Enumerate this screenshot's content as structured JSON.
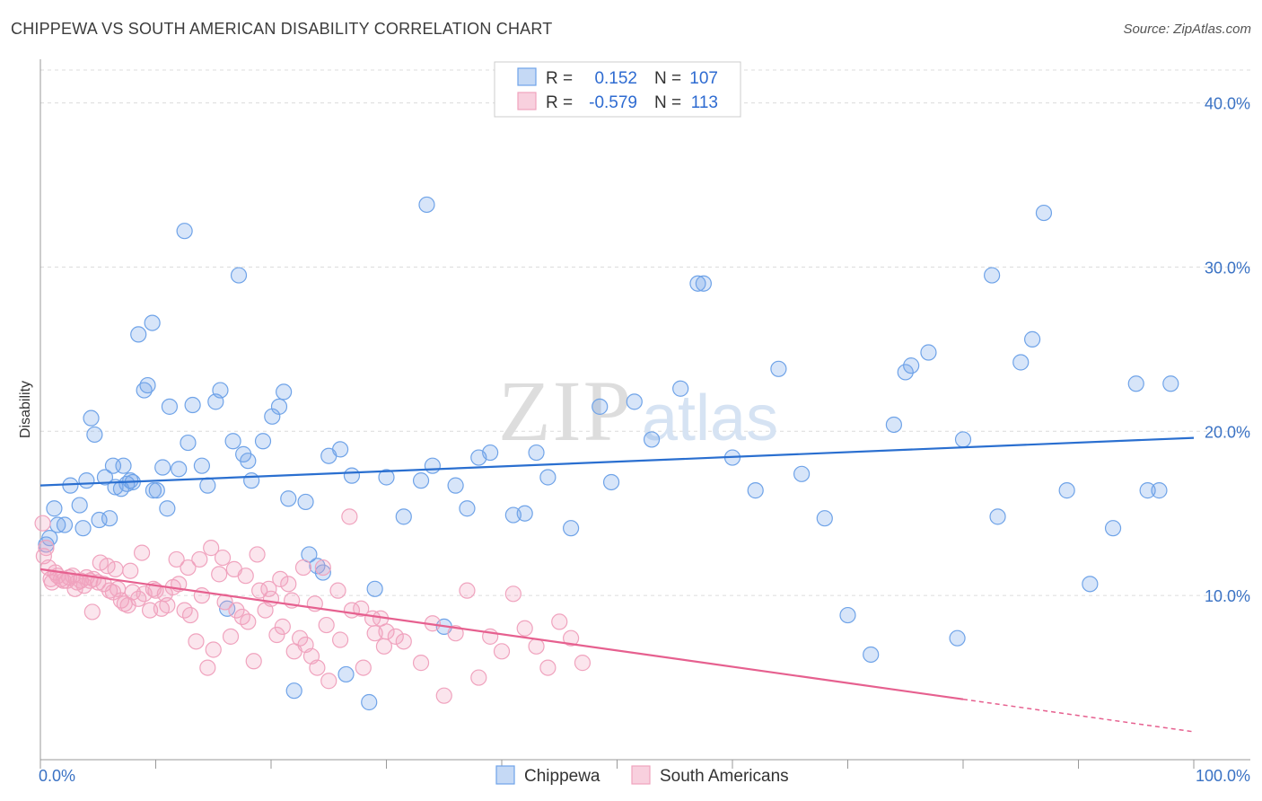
{
  "title": "CHIPPEWA VS SOUTH AMERICAN DISABILITY CORRELATION CHART",
  "source": "Source: ZipAtlas.com",
  "watermark": {
    "zip": "ZIP",
    "atlas": "atlas"
  },
  "legend_box": {
    "rows": [
      {
        "r_label": "R =",
        "r_value": "0.152",
        "n_label": "N =",
        "n_value": "107",
        "color": "#6fa3e8"
      },
      {
        "r_label": "R =",
        "r_value": "-0.579",
        "n_label": "N =",
        "n_value": "113",
        "color": "#f0a3be"
      }
    ]
  },
  "bottom_legend": [
    {
      "label": "Chippewa",
      "color": "#6fa3e8"
    },
    {
      "label": "South Americans",
      "color": "#f0a3be"
    }
  ],
  "chart_data": {
    "type": "scatter",
    "title": "CHIPPEWA VS SOUTH AMERICAN DISABILITY CORRELATION CHART",
    "xlabel": "",
    "ylabel": "Disability",
    "xlim": [
      0,
      100
    ],
    "ylim": [
      0,
      42
    ],
    "x_tick_labels": [
      "0.0%",
      "100.0%"
    ],
    "y_ticks": [
      10,
      20,
      30,
      40
    ],
    "y_tick_labels": [
      "10.0%",
      "20.0%",
      "30.0%",
      "40.0%"
    ],
    "grid": true,
    "legend_position": "top-center",
    "series": [
      {
        "name": "Chippewa",
        "color": "#6fa3e8",
        "line_color": "#2a6fd0",
        "trend": {
          "x": [
            0,
            100
          ],
          "y": [
            16.7,
            19.6
          ],
          "dashed_from": null
        },
        "points": [
          [
            0.5,
            13.1
          ],
          [
            0.8,
            13.5
          ],
          [
            1.2,
            15.3
          ],
          [
            1.5,
            14.3
          ],
          [
            2.1,
            14.3
          ],
          [
            2.6,
            16.7
          ],
          [
            3.4,
            15.5
          ],
          [
            3.7,
            14.1
          ],
          [
            4.0,
            17.0
          ],
          [
            4.4,
            20.8
          ],
          [
            4.7,
            19.8
          ],
          [
            5.1,
            14.6
          ],
          [
            5.6,
            17.2
          ],
          [
            6.0,
            14.7
          ],
          [
            6.3,
            17.9
          ],
          [
            6.5,
            16.6
          ],
          [
            7.0,
            16.5
          ],
          [
            7.2,
            17.9
          ],
          [
            7.5,
            16.8
          ],
          [
            7.8,
            17.0
          ],
          [
            8.0,
            16.9
          ],
          [
            8.5,
            25.9
          ],
          [
            9.0,
            22.5
          ],
          [
            9.3,
            22.8
          ],
          [
            9.7,
            26.6
          ],
          [
            9.8,
            16.4
          ],
          [
            10.1,
            16.4
          ],
          [
            10.6,
            17.8
          ],
          [
            11.0,
            15.3
          ],
          [
            11.2,
            21.5
          ],
          [
            12.0,
            17.7
          ],
          [
            12.5,
            32.2
          ],
          [
            12.8,
            19.3
          ],
          [
            13.2,
            21.6
          ],
          [
            14.0,
            17.9
          ],
          [
            14.5,
            16.7
          ],
          [
            15.2,
            21.8
          ],
          [
            15.6,
            22.5
          ],
          [
            16.2,
            9.2
          ],
          [
            16.7,
            19.4
          ],
          [
            17.2,
            29.5
          ],
          [
            17.6,
            18.6
          ],
          [
            18.0,
            18.2
          ],
          [
            18.3,
            17.0
          ],
          [
            19.3,
            19.4
          ],
          [
            20.1,
            20.9
          ],
          [
            20.7,
            21.5
          ],
          [
            21.1,
            22.4
          ],
          [
            21.5,
            15.9
          ],
          [
            22.0,
            4.2
          ],
          [
            23.0,
            15.7
          ],
          [
            23.3,
            12.5
          ],
          [
            24.0,
            11.8
          ],
          [
            24.5,
            11.4
          ],
          [
            25.0,
            18.5
          ],
          [
            26.0,
            18.9
          ],
          [
            26.5,
            5.2
          ],
          [
            27.0,
            17.3
          ],
          [
            28.5,
            3.5
          ],
          [
            29.0,
            10.4
          ],
          [
            30.0,
            17.2
          ],
          [
            31.5,
            14.8
          ],
          [
            33.0,
            17.0
          ],
          [
            33.5,
            33.8
          ],
          [
            34.0,
            17.9
          ],
          [
            35.0,
            8.1
          ],
          [
            36.0,
            16.7
          ],
          [
            37.0,
            15.3
          ],
          [
            38.0,
            18.4
          ],
          [
            39.0,
            18.7
          ],
          [
            41.0,
            14.9
          ],
          [
            42.0,
            15.0
          ],
          [
            43.0,
            18.7
          ],
          [
            44.0,
            17.2
          ],
          [
            46.0,
            14.1
          ],
          [
            48.5,
            21.5
          ],
          [
            49.5,
            16.9
          ],
          [
            51.5,
            21.8
          ],
          [
            53.0,
            19.5
          ],
          [
            55.5,
            22.6
          ],
          [
            57.0,
            29.0
          ],
          [
            57.5,
            29.0
          ],
          [
            60.0,
            18.4
          ],
          [
            62.0,
            16.4
          ],
          [
            64.0,
            23.8
          ],
          [
            66.0,
            17.4
          ],
          [
            68.0,
            14.7
          ],
          [
            70.0,
            8.8
          ],
          [
            72.0,
            6.4
          ],
          [
            74.0,
            20.4
          ],
          [
            75.0,
            23.6
          ],
          [
            75.5,
            24.0
          ],
          [
            77.0,
            24.8
          ],
          [
            79.5,
            7.4
          ],
          [
            80.0,
            19.5
          ],
          [
            82.5,
            29.5
          ],
          [
            83.0,
            14.8
          ],
          [
            85.0,
            24.2
          ],
          [
            86.0,
            25.6
          ],
          [
            87.0,
            33.3
          ],
          [
            89.0,
            16.4
          ],
          [
            91.0,
            10.7
          ],
          [
            93.0,
            14.1
          ],
          [
            95.0,
            22.9
          ],
          [
            96.0,
            16.4
          ],
          [
            97.0,
            16.4
          ],
          [
            98.0,
            22.9
          ]
        ]
      },
      {
        "name": "South Americans",
        "color": "#f0a3be",
        "line_color": "#e6608f",
        "trend": {
          "x": [
            0,
            100
          ],
          "y": [
            11.6,
            1.7
          ],
          "dashed_from": 80
        },
        "points": [
          [
            0.2,
            14.4
          ],
          [
            0.3,
            12.4
          ],
          [
            0.5,
            12.9
          ],
          [
            0.7,
            11.7
          ],
          [
            0.9,
            11.0
          ],
          [
            1.0,
            10.8
          ],
          [
            1.3,
            11.4
          ],
          [
            1.5,
            11.2
          ],
          [
            1.8,
            11.0
          ],
          [
            2.0,
            10.9
          ],
          [
            2.3,
            10.9
          ],
          [
            2.5,
            11.1
          ],
          [
            2.8,
            11.2
          ],
          [
            3.0,
            10.4
          ],
          [
            3.2,
            10.8
          ],
          [
            3.5,
            10.9
          ],
          [
            3.8,
            10.6
          ],
          [
            4.0,
            11.1
          ],
          [
            4.3,
            10.9
          ],
          [
            4.6,
            11.0
          ],
          [
            5.0,
            10.8
          ],
          [
            5.5,
            10.7
          ],
          [
            5.8,
            11.8
          ],
          [
            6.0,
            10.3
          ],
          [
            6.3,
            10.2
          ],
          [
            6.7,
            10.4
          ],
          [
            7.0,
            9.7
          ],
          [
            7.3,
            9.5
          ],
          [
            7.6,
            9.4
          ],
          [
            8.0,
            10.2
          ],
          [
            8.5,
            9.8
          ],
          [
            9.0,
            10.1
          ],
          [
            9.5,
            9.1
          ],
          [
            10.0,
            10.3
          ],
          [
            10.5,
            9.2
          ],
          [
            11.0,
            9.4
          ],
          [
            11.5,
            10.5
          ],
          [
            12.0,
            10.7
          ],
          [
            12.5,
            9.1
          ],
          [
            13.0,
            8.8
          ],
          [
            13.5,
            7.2
          ],
          [
            14.0,
            10.0
          ],
          [
            14.5,
            5.6
          ],
          [
            15.0,
            6.7
          ],
          [
            15.5,
            11.3
          ],
          [
            16.0,
            9.6
          ],
          [
            16.5,
            7.5
          ],
          [
            17.0,
            9.1
          ],
          [
            17.5,
            8.7
          ],
          [
            18.0,
            8.4
          ],
          [
            18.5,
            6.0
          ],
          [
            19.0,
            10.3
          ],
          [
            19.5,
            9.1
          ],
          [
            20.0,
            9.8
          ],
          [
            20.5,
            7.6
          ],
          [
            21.0,
            8.1
          ],
          [
            21.5,
            10.7
          ],
          [
            22.0,
            6.6
          ],
          [
            22.5,
            7.4
          ],
          [
            23.0,
            7.0
          ],
          [
            23.5,
            6.3
          ],
          [
            24.0,
            5.6
          ],
          [
            24.5,
            11.7
          ],
          [
            25.0,
            4.8
          ],
          [
            26.0,
            7.3
          ],
          [
            27.0,
            9.1
          ],
          [
            28.0,
            5.6
          ],
          [
            29.0,
            7.7
          ],
          [
            29.5,
            8.6
          ],
          [
            30.0,
            7.8
          ],
          [
            4.5,
            9.0
          ],
          [
            5.2,
            12.0
          ],
          [
            6.5,
            11.6
          ],
          [
            7.8,
            11.5
          ],
          [
            8.8,
            12.6
          ],
          [
            9.8,
            10.4
          ],
          [
            10.8,
            10.1
          ],
          [
            11.8,
            12.2
          ],
          [
            12.8,
            11.7
          ],
          [
            13.8,
            12.2
          ],
          [
            14.8,
            12.9
          ],
          [
            15.8,
            12.3
          ],
          [
            16.8,
            11.6
          ],
          [
            17.8,
            11.2
          ],
          [
            18.8,
            12.5
          ],
          [
            19.8,
            10.4
          ],
          [
            20.8,
            11.0
          ],
          [
            21.8,
            9.7
          ],
          [
            22.8,
            11.7
          ],
          [
            23.8,
            9.5
          ],
          [
            24.8,
            8.2
          ],
          [
            25.8,
            10.3
          ],
          [
            26.8,
            14.8
          ],
          [
            27.8,
            9.2
          ],
          [
            28.8,
            8.6
          ],
          [
            29.8,
            6.9
          ],
          [
            30.8,
            7.5
          ],
          [
            31.5,
            7.2
          ],
          [
            33.0,
            5.9
          ],
          [
            34.0,
            8.3
          ],
          [
            35.0,
            3.9
          ],
          [
            36.0,
            7.7
          ],
          [
            37.0,
            10.3
          ],
          [
            38.0,
            5.0
          ],
          [
            39.0,
            7.5
          ],
          [
            40.0,
            6.6
          ],
          [
            41.0,
            10.1
          ],
          [
            42.0,
            8.0
          ],
          [
            43.0,
            6.9
          ],
          [
            44.0,
            5.6
          ],
          [
            45.0,
            8.4
          ],
          [
            46.0,
            7.4
          ],
          [
            47.0,
            5.9
          ]
        ]
      }
    ]
  }
}
